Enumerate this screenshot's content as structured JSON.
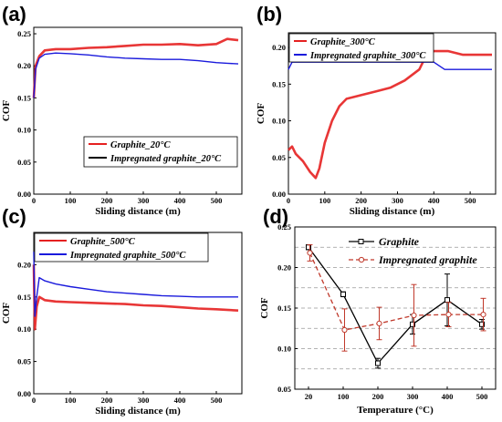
{
  "colors": {
    "graphite": "#e52020",
    "impregnated": "#1a1adc",
    "graphite_d": "#000000",
    "impregnated_d": "#c0392b",
    "grid": "#999999"
  },
  "chart_data": [
    {
      "panel": "(a)",
      "type": "line",
      "xlabel": "Sliding distance (m)",
      "ylabel": "COF",
      "xlim": [
        0,
        570
      ],
      "ylim": [
        0.0,
        0.26
      ],
      "xticks": [
        0,
        100,
        200,
        300,
        400,
        500
      ],
      "yticks": [
        0.0,
        0.05,
        0.1,
        0.15,
        0.2,
        0.25
      ],
      "legend_position": "center-bottom",
      "series": [
        {
          "name": "Graphite_20°C",
          "x": [
            0,
            5,
            15,
            30,
            60,
            100,
            150,
            200,
            250,
            300,
            350,
            400,
            450,
            500,
            530,
            560
          ],
          "y": [
            0.15,
            0.2,
            0.215,
            0.224,
            0.226,
            0.226,
            0.228,
            0.229,
            0.231,
            0.233,
            0.233,
            0.234,
            0.232,
            0.234,
            0.242,
            0.24
          ]
        },
        {
          "name": "Impregnated graphite_20°C",
          "x": [
            0,
            5,
            15,
            30,
            60,
            100,
            150,
            200,
            250,
            300,
            350,
            400,
            450,
            500,
            530,
            560
          ],
          "y": [
            0.15,
            0.195,
            0.212,
            0.218,
            0.22,
            0.219,
            0.217,
            0.214,
            0.212,
            0.211,
            0.21,
            0.21,
            0.208,
            0.205,
            0.204,
            0.203
          ]
        }
      ]
    },
    {
      "panel": "(b)",
      "type": "line",
      "xlabel": "Sliding distance (m)",
      "ylabel": "COF",
      "xlim": [
        0,
        570
      ],
      "ylim": [
        0.0,
        0.22
      ],
      "xticks": [
        0,
        100,
        200,
        300,
        400,
        500
      ],
      "yticks": [
        0.0,
        0.05,
        0.1,
        0.15,
        0.2
      ],
      "legend_position": "top-left",
      "series": [
        {
          "name": "Graphite_300°C",
          "x": [
            0,
            10,
            20,
            40,
            60,
            75,
            85,
            100,
            120,
            140,
            160,
            200,
            240,
            280,
            320,
            360,
            380,
            400,
            440,
            480,
            520,
            560
          ],
          "y": [
            0.06,
            0.065,
            0.055,
            0.045,
            0.03,
            0.022,
            0.035,
            0.07,
            0.1,
            0.12,
            0.13,
            0.135,
            0.14,
            0.145,
            0.155,
            0.17,
            0.19,
            0.195,
            0.195,
            0.19,
            0.19,
            0.19
          ]
        },
        {
          "name": "Impregnated graphite_300°C",
          "x": [
            0,
            10,
            20,
            50,
            100,
            150,
            200,
            250,
            300,
            350,
            400,
            430,
            460,
            500,
            530,
            560
          ],
          "y": [
            0.17,
            0.18,
            0.18,
            0.18,
            0.18,
            0.18,
            0.18,
            0.18,
            0.18,
            0.18,
            0.18,
            0.17,
            0.17,
            0.17,
            0.17,
            0.17
          ]
        }
      ]
    },
    {
      "panel": "(c)",
      "type": "line",
      "xlabel": "Sliding distance (m)",
      "ylabel": "COF",
      "xlim": [
        0,
        570
      ],
      "ylim": [
        0.0,
        0.25
      ],
      "xticks": [
        0,
        100,
        200,
        300,
        400,
        500
      ],
      "yticks": [
        0.0,
        0.05,
        0.1,
        0.15,
        0.2
      ],
      "legend_position": "top-left",
      "series": [
        {
          "name": "Graphite_500°C",
          "x": [
            0,
            3,
            8,
            15,
            30,
            60,
            100,
            150,
            200,
            250,
            300,
            350,
            400,
            450,
            500,
            560
          ],
          "y": [
            0.2,
            0.1,
            0.135,
            0.15,
            0.145,
            0.143,
            0.142,
            0.141,
            0.14,
            0.139,
            0.137,
            0.136,
            0.134,
            0.132,
            0.131,
            0.129
          ]
        },
        {
          "name": "Impregnated graphite_500°C",
          "x": [
            0,
            3,
            8,
            15,
            30,
            60,
            100,
            150,
            200,
            250,
            300,
            350,
            400,
            450,
            500,
            560
          ],
          "y": [
            0.22,
            0.12,
            0.15,
            0.18,
            0.175,
            0.17,
            0.166,
            0.162,
            0.158,
            0.156,
            0.154,
            0.152,
            0.151,
            0.15,
            0.15,
            0.15
          ]
        }
      ]
    },
    {
      "panel": "(d)",
      "type": "line",
      "xlabel": "Temperature (°C)",
      "ylabel": "COF",
      "categories": [
        "20",
        "100",
        "200",
        "300",
        "400",
        "500"
      ],
      "ylim": [
        0.05,
        0.25
      ],
      "yticks": [
        0.05,
        0.1,
        0.15,
        0.2,
        0.25
      ],
      "grid": true,
      "legend_position": "top-right",
      "series": [
        {
          "name": "Graphite",
          "values": [
            0.225,
            0.167,
            0.082,
            0.13,
            0.16,
            0.13
          ],
          "errors": [
            0.003,
            0.003,
            0.006,
            0.012,
            0.032,
            0.006
          ]
        },
        {
          "name": "Impregnated graphite",
          "values": [
            0.218,
            0.123,
            0.131,
            0.141,
            0.142,
            0.142
          ],
          "errors": [
            0.01,
            0.026,
            0.02,
            0.038,
            0.015,
            0.02
          ]
        }
      ]
    }
  ]
}
